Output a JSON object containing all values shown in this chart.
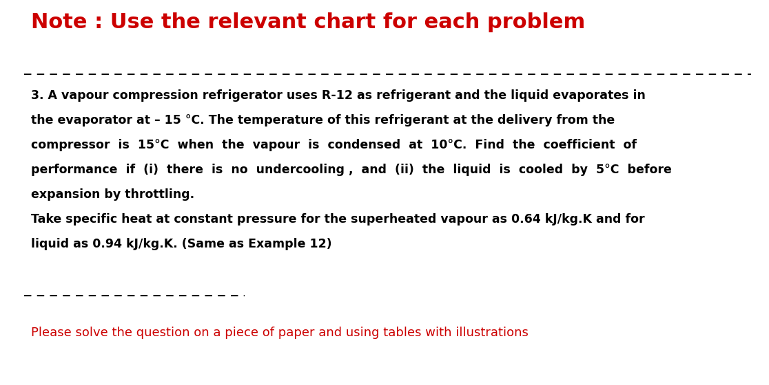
{
  "bg_color": "#ffffff",
  "note_text": "Note : Use the relevant chart for each problem",
  "note_color": "#cc0000",
  "note_fontsize": 22,
  "body_lines": [
    "3. A vapour compression refrigerator uses R-12 as refrigerant and the liquid evaporates in",
    "the evaporator at – 15 °C. The temperature of this refrigerant at the delivery from the",
    "compressor  is  15°C  when  the  vapour  is  condensed  at  10°C.  Find  the  coefficient  of",
    "performance  if  (i)  there  is  no  undercooling ,  and  (ii)  the  liquid  is  cooled  by  5°C  before",
    "expansion by throttling.",
    "Take specific heat at constant pressure for the superheated vapour as 0.64 kJ/kg.K and for",
    "liquid as 0.94 kJ/kg.K. (Same as Example 12)"
  ],
  "body_color": "#000000",
  "body_fontsize": 12.5,
  "footer_text": "Please solve the question on a piece of paper and using tables with illustrations",
  "footer_color": "#cc0000",
  "footer_fontsize": 13.0
}
